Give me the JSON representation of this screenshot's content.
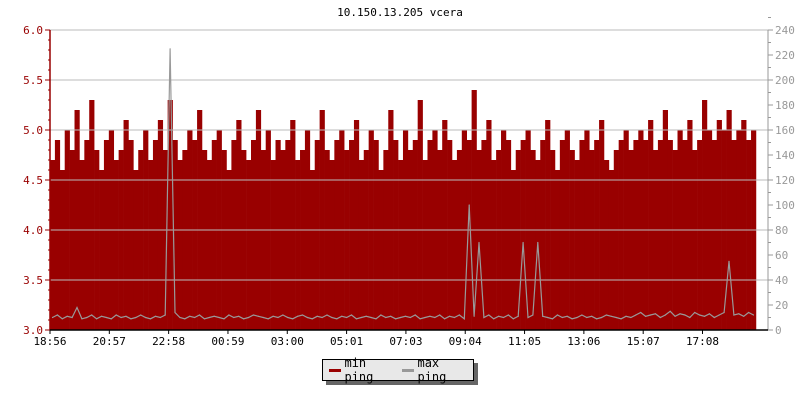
{
  "chart_data": {
    "type": "area",
    "title": "10.150.13.205 vcera",
    "x_start": "18:56",
    "interval_minutes": 10,
    "x_tick_labels": [
      "18:56",
      "20:57",
      "22:58",
      "00:59",
      "03:00",
      "05:01",
      "07:03",
      "09:04",
      "11:05",
      "13:06",
      "15:07",
      "17:08"
    ],
    "x_tick_step_minutes": 121,
    "y_left": {
      "range": [
        3.0,
        6.0
      ],
      "ticks": [
        "3.0",
        "3.5",
        "4.0",
        "4.5",
        "5.0",
        "5.5",
        "6.0"
      ]
    },
    "y_right": {
      "range": [
        0,
        240
      ],
      "ticks": [
        "0",
        "20",
        "40",
        "60",
        "80",
        "100",
        "120",
        "140",
        "160",
        "180",
        "200",
        "220",
        "240"
      ]
    },
    "grid": true,
    "legend_position": "bottom",
    "series": [
      {
        "name": "min ping",
        "axis": "left",
        "color": "#990000",
        "style": "filled bars",
        "values": [
          4.7,
          4.9,
          4.6,
          5.0,
          4.8,
          5.2,
          4.7,
          4.9,
          5.3,
          4.8,
          4.6,
          4.9,
          5.0,
          4.7,
          4.8,
          5.1,
          4.9,
          4.6,
          4.8,
          5.0,
          4.7,
          4.9,
          5.1,
          4.8,
          5.3,
          4.9,
          4.7,
          4.8,
          5.0,
          4.9,
          5.2,
          4.8,
          4.7,
          4.9,
          5.0,
          4.8,
          4.6,
          4.9,
          5.1,
          4.8,
          4.7,
          4.9,
          5.2,
          4.8,
          5.0,
          4.7,
          4.9,
          4.8,
          4.9,
          5.1,
          4.7,
          4.8,
          5.0,
          4.6,
          4.9,
          5.2,
          4.8,
          4.7,
          4.9,
          5.0,
          4.8,
          4.9,
          5.1,
          4.7,
          4.8,
          5.0,
          4.9,
          4.6,
          4.8,
          5.2,
          4.9,
          4.7,
          5.0,
          4.8,
          4.9,
          5.3,
          4.7,
          4.9,
          5.0,
          4.8,
          5.1,
          4.9,
          4.7,
          4.8,
          5.0,
          4.9,
          5.4,
          4.8,
          4.9,
          5.1,
          4.7,
          4.8,
          5.0,
          4.9,
          4.6,
          4.8,
          4.9,
          5.0,
          4.8,
          4.7,
          4.9,
          5.1,
          4.8,
          4.6,
          4.9,
          5.0,
          4.8,
          4.7,
          4.9,
          5.0,
          4.8,
          4.9,
          5.1,
          4.7,
          4.6,
          4.8,
          4.9,
          5.0,
          4.8,
          4.9,
          5.0,
          4.9,
          5.1,
          4.8,
          4.9,
          5.2,
          4.9,
          4.8,
          5.0,
          4.9,
          5.1,
          4.8,
          4.9,
          5.3,
          5.0,
          4.9,
          5.1,
          5.0,
          5.2,
          4.9,
          5.0,
          5.1,
          4.9,
          5.0
        ]
      },
      {
        "name": "max ping",
        "axis": "right",
        "color": "#999999",
        "style": "line",
        "values": [
          10,
          12,
          9,
          11,
          10,
          18,
          9,
          10,
          12,
          9,
          11,
          10,
          9,
          12,
          10,
          11,
          9,
          10,
          12,
          10,
          9,
          11,
          10,
          12,
          225,
          14,
          10,
          9,
          11,
          10,
          12,
          9,
          10,
          11,
          10,
          9,
          12,
          10,
          11,
          9,
          10,
          12,
          11,
          10,
          9,
          11,
          10,
          12,
          10,
          9,
          11,
          12,
          10,
          9,
          11,
          10,
          12,
          10,
          9,
          11,
          10,
          12,
          9,
          10,
          11,
          10,
          9,
          12,
          10,
          11,
          9,
          10,
          11,
          10,
          12,
          9,
          10,
          11,
          10,
          12,
          9,
          11,
          10,
          12,
          9,
          100,
          11,
          70,
          10,
          12,
          9,
          11,
          10,
          12,
          9,
          11,
          70,
          10,
          12,
          70,
          11,
          10,
          9,
          12,
          10,
          11,
          9,
          10,
          12,
          10,
          11,
          9,
          10,
          12,
          11,
          10,
          9,
          11,
          10,
          12,
          14,
          11,
          12,
          13,
          10,
          12,
          15,
          11,
          13,
          12,
          10,
          14,
          12,
          11,
          13,
          10,
          12,
          14,
          55,
          12,
          13,
          11,
          14,
          12
        ]
      }
    ]
  }
}
